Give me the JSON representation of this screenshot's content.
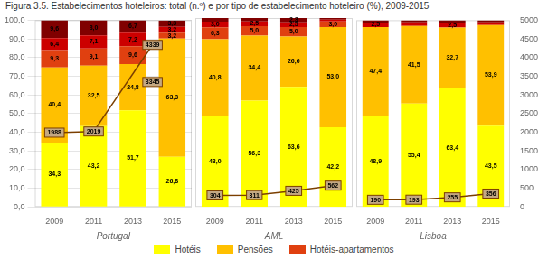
{
  "chart_data": [
    {
      "type": "bar",
      "title": "Figura 3.5. Estabelecimentos hoteleiros: total (n.º) e por tipo de estabelecimento hoteleiro (%), 2009-2015",
      "xlabel": "Portugal",
      "categories": [
        "2009",
        "2011",
        "2013",
        "2015"
      ],
      "stacked": true,
      "data_labels": true,
      "grid": true,
      "legend": "bottom",
      "ylim": [
        0,
        100
      ],
      "yticks": [
        {
          "value": 0,
          "label": "0,0"
        },
        {
          "value": 10,
          "label": "10,0"
        },
        {
          "value": 20,
          "label": "20,0"
        },
        {
          "value": 30,
          "label": "30,0"
        },
        {
          "value": 40,
          "label": "40,0"
        },
        {
          "value": 50,
          "label": "50,0"
        },
        {
          "value": 60,
          "label": "60,0"
        },
        {
          "value": 70,
          "label": "70,0"
        },
        {
          "value": 80,
          "label": "80,0"
        },
        {
          "value": 90,
          "label": "90,0"
        },
        {
          "value": 100,
          "label": "100,0"
        }
      ],
      "y2lim": [
        0,
        5000
      ],
      "series": [
        {
          "name": "Hotéis",
          "color": "#FFFF00",
          "values": [
            34.3,
            43.2,
            51.7,
            26.8
          ],
          "value_labels": [
            "34,3",
            "43,2",
            "51,7",
            "26,8"
          ]
        },
        {
          "name": "Pensões",
          "color": "#FFC000",
          "values": [
            40.4,
            32.5,
            24.8,
            63.3
          ],
          "value_labels": [
            "40,4",
            "32,5",
            "24,8",
            "63,3"
          ]
        },
        {
          "name": "Hotéis-apartamentos",
          "color": "#E04010",
          "values": [
            9.3,
            9.1,
            9.6,
            3.2
          ],
          "value_labels": [
            "9,3",
            "9,1",
            "9,6",
            "3,2"
          ]
        },
        {
          "color": "#CC0000",
          "values": [
            6.4,
            7.1,
            7.2,
            3.2
          ],
          "value_labels": [
            "6,4",
            "7,1",
            "7,2",
            "3,2"
          ]
        },
        {
          "color": "#800000",
          "values": [
            9.6,
            8.0,
            6.7,
            3.3
          ],
          "value_labels": [
            "9,6",
            "8,0",
            "6,7",
            "3,3"
          ]
        },
        {
          "type": "line",
          "axis": "y2",
          "color": "#7B3F00",
          "marker": "square",
          "values": [
            1988,
            2019,
            null,
            null
          ]
        }
      ],
      "annotations": [
        {
          "text": "4339",
          "y": 4339,
          "axis": "y2"
        },
        {
          "text": "3345",
          "y": 3345,
          "axis": "y2"
        }
      ]
    },
    {
      "type": "bar",
      "xlabel": "AML",
      "categories": [
        "2009",
        "2011",
        "2013",
        "2015"
      ],
      "stacked": true,
      "data_labels": true,
      "ylim": [
        0,
        100
      ],
      "y2lim": [
        0,
        5000
      ],
      "series": [
        {
          "name": "Hotéis",
          "color": "#FFFF00",
          "values": [
            48.0,
            56.3,
            63.6,
            42.2
          ],
          "value_labels": [
            "48,0",
            "56,3",
            "63,6",
            "42,2"
          ]
        },
        {
          "name": "Pensões",
          "color": "#FFC000",
          "values": [
            40.8,
            34.4,
            26.6,
            53.0
          ],
          "value_labels": [
            "40,8",
            "34,4",
            "26,6",
            "53,0"
          ]
        },
        {
          "name": "Hotéis-apartamentos",
          "color": "#E04010",
          "values": [
            6.3,
            5.0,
            5.0,
            3.0
          ],
          "value_labels": [
            "6,3",
            "5,0",
            "5,0",
            "3,0"
          ]
        },
        {
          "color": "#CC0000",
          "values": [
            3.0,
            2.5,
            2.5,
            1.0
          ],
          "value_labels": [
            "3,0",
            "2,5",
            "2,5",
            null
          ]
        },
        {
          "color": "#800000",
          "values": [
            1.9,
            1.8,
            2.3,
            0.8
          ],
          "value_labels": [
            null,
            null,
            "2,3",
            null
          ]
        },
        {
          "type": "line",
          "axis": "y2",
          "color": "#7B3F00",
          "marker": "square",
          "values": [
            304,
            311,
            425,
            562
          ]
        }
      ]
    },
    {
      "type": "bar",
      "xlabel": "Lisboa",
      "categories": [
        "2009",
        "2011",
        "2013",
        "2015"
      ],
      "stacked": true,
      "data_labels": true,
      "ylim": [
        0,
        100
      ],
      "y2lim": [
        0,
        5000
      ],
      "y2ticks": [
        0,
        500,
        1000,
        1500,
        2000,
        2500,
        3000,
        3500,
        4000,
        4500,
        5000
      ],
      "series": [
        {
          "name": "Hotéis",
          "color": "#FFFF00",
          "values": [
            48.9,
            55.4,
            63.4,
            43.5
          ],
          "value_labels": [
            "48,9",
            "55,4",
            "63,4",
            "43,5"
          ]
        },
        {
          "name": "Pensões",
          "color": "#FFC000",
          "values": [
            47.4,
            41.5,
            32.7,
            53.9
          ],
          "value_labels": [
            "47,4",
            "41,5",
            "32,7",
            "53,9"
          ]
        },
        {
          "name": "Hotéis-apartamentos",
          "color": "#E04010",
          "values": [
            0.0,
            0.0,
            0.0,
            0.0
          ],
          "value_labels": [
            null,
            null,
            null,
            null
          ]
        },
        {
          "color": "#CC0000",
          "values": [
            2.5,
            2.0,
            2.5,
            1.5
          ],
          "value_labels": [
            "2,5",
            null,
            "2,5",
            null
          ]
        },
        {
          "color": "#800000",
          "values": [
            1.2,
            1.1,
            1.4,
            1.1
          ],
          "value_labels": [
            null,
            null,
            null,
            null
          ]
        },
        {
          "type": "line",
          "axis": "y2",
          "color": "#7B3F00",
          "marker": "square",
          "values": [
            190,
            193,
            255,
            356
          ]
        }
      ]
    }
  ]
}
